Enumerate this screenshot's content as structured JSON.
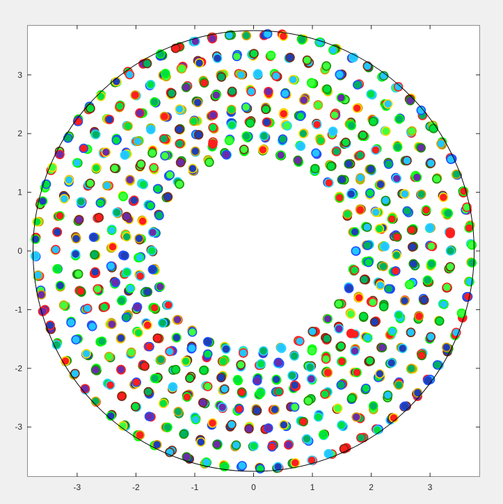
{
  "colors": {
    "figure_background": "#f0f0f0",
    "axes_background": "#ffffff",
    "axes_edge": "#262626",
    "boundary_circle": "#000000",
    "marker_faces": [
      "#1f3fb4",
      "#6b2ca8",
      "#ff1e1e",
      "#22c6ff",
      "#00b060",
      "#40ff40",
      "#00e040"
    ],
    "marker_edges": [
      "#d4a000",
      "#ffd800",
      "#ff2020",
      "#7a2a10",
      "#00ff00",
      "#2050ff",
      "#2bd4ff",
      "#1a8f00"
    ]
  },
  "chart_data": {
    "type": "scatter",
    "title": "",
    "xlabel": "",
    "ylabel": "",
    "xlim": [
      -3.85,
      3.85
    ],
    "ylim": [
      -3.85,
      3.85
    ],
    "xticks": [
      -3,
      -2,
      -1,
      0,
      1,
      2,
      3
    ],
    "yticks": [
      -3,
      -2,
      -1,
      0,
      1,
      2,
      3
    ],
    "xtick_labels": [
      "-3",
      "-2",
      "-1",
      "0",
      "1",
      "2",
      "3"
    ],
    "ytick_labels": [
      "-3",
      "-2",
      "-1",
      "0",
      "1",
      "2",
      "3"
    ],
    "grid": false,
    "outer_circle_radius": 3.75,
    "center_hole_radius": 1.6,
    "rings": [
      {
        "radius": 1.72,
        "points": 34
      },
      {
        "radius": 1.95,
        "points": 40
      },
      {
        "radius": 2.2,
        "points": 44
      },
      {
        "radius": 2.42,
        "points": 50
      },
      {
        "radius": 2.72,
        "points": 56
      },
      {
        "radius": 3.02,
        "points": 62
      },
      {
        "radius": 3.35,
        "points": 68
      },
      {
        "radius": 3.7,
        "points": 76
      }
    ]
  }
}
